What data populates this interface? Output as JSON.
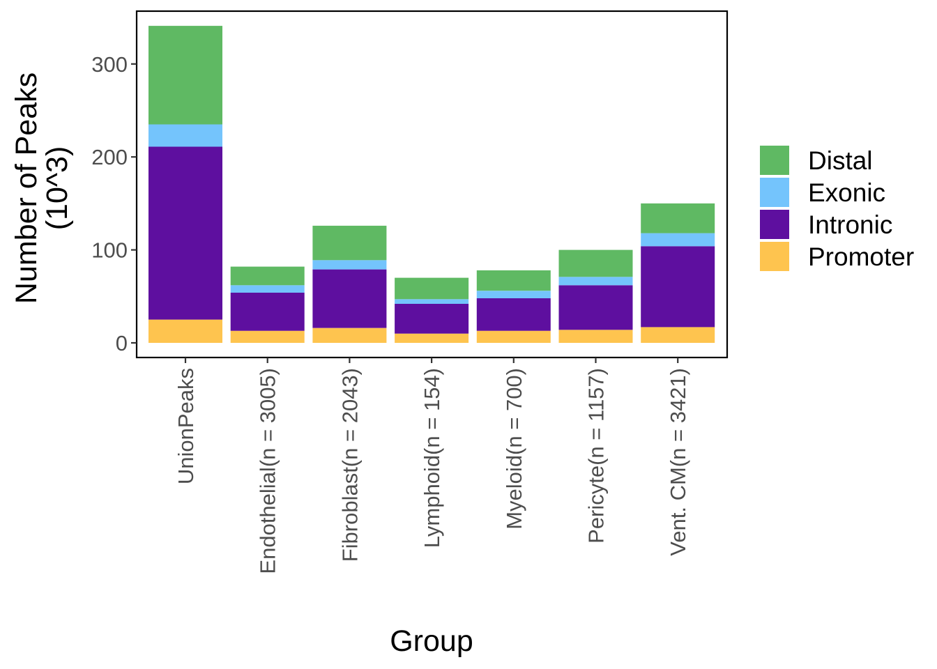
{
  "chart_data": {
    "type": "bar",
    "stacked": true,
    "xlabel": "Group",
    "ylabel_lines": [
      "Number of Peaks",
      "(10^3)"
    ],
    "categories": [
      "UnionPeaks",
      "Endothelial(n = 3005)",
      "Fibroblast(n = 2043)",
      "Lymphoid(n = 154)",
      "Myeloid(n = 700)",
      "Pericyte(n = 1157)",
      "Vent. CM(n = 3421)"
    ],
    "series": [
      {
        "name": "Promoter",
        "color": "#FEC44F",
        "values": [
          25,
          13,
          16,
          10,
          13,
          14,
          17
        ]
      },
      {
        "name": "Intronic",
        "color": "#5E0F9F",
        "values": [
          186,
          41,
          63,
          32,
          35,
          48,
          87
        ]
      },
      {
        "name": "Exonic",
        "color": "#74C4FC",
        "values": [
          24,
          8,
          10,
          5,
          8,
          9,
          14
        ]
      },
      {
        "name": "Distal",
        "color": "#5FB963",
        "values": [
          106,
          20,
          37,
          23,
          22,
          29,
          32
        ]
      }
    ],
    "legend_order": [
      "Distal",
      "Exonic",
      "Intronic",
      "Promoter"
    ],
    "yticks": [
      0,
      100,
      200,
      300
    ],
    "ylim": [
      -14,
      358
    ],
    "grid": false,
    "legend_position": "right"
  }
}
